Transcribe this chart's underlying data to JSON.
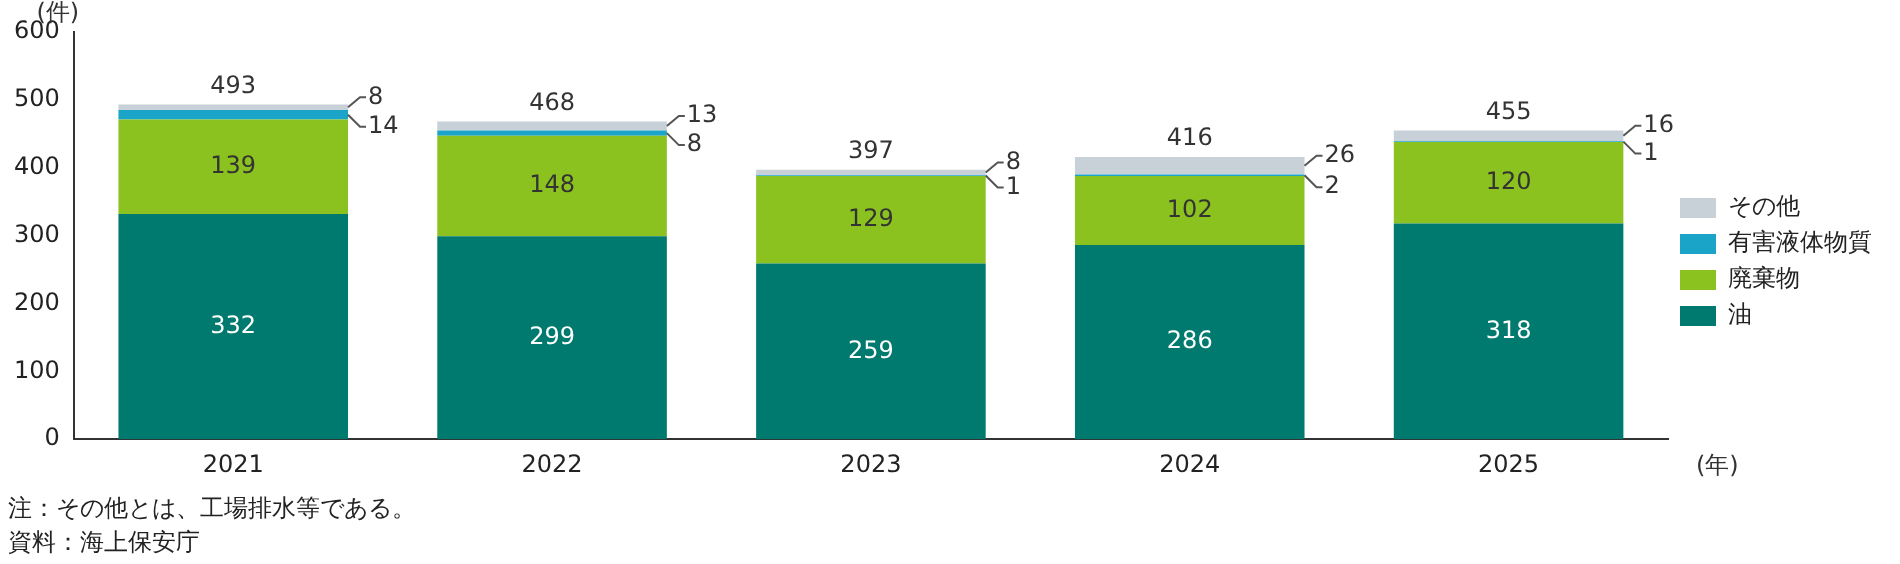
{
  "chart_data": {
    "type": "bar",
    "stacked": true,
    "ylabel": "(件)",
    "xlabel": "(年)",
    "categories": [
      "2021",
      "2022",
      "2023",
      "2024",
      "2025"
    ],
    "series": [
      {
        "name": "油",
        "color": "#007a6e",
        "values": [
          332,
          299,
          259,
          286,
          318
        ]
      },
      {
        "name": "廃棄物",
        "color": "#8cc21f",
        "values": [
          139,
          148,
          129,
          102,
          120
        ]
      },
      {
        "name": "有害液体物質",
        "color": "#1aa5c8",
        "values": [
          14,
          8,
          1,
          2,
          1
        ]
      },
      {
        "name": "その他",
        "color": "#c8d0d8",
        "values": [
          8,
          13,
          8,
          26,
          16
        ]
      }
    ],
    "ylim": [
      0,
      600
    ],
    "yticks": [
      0,
      100,
      200,
      300,
      400,
      500,
      600
    ],
    "data_labels": true,
    "totals": [
      "493",
      "468",
      "397",
      "416",
      "455"
    ],
    "legend": "bottom right",
    "annotations": [
      "注：その他とは、工場排水等である。",
      "資料：海上保安庁"
    ]
  }
}
